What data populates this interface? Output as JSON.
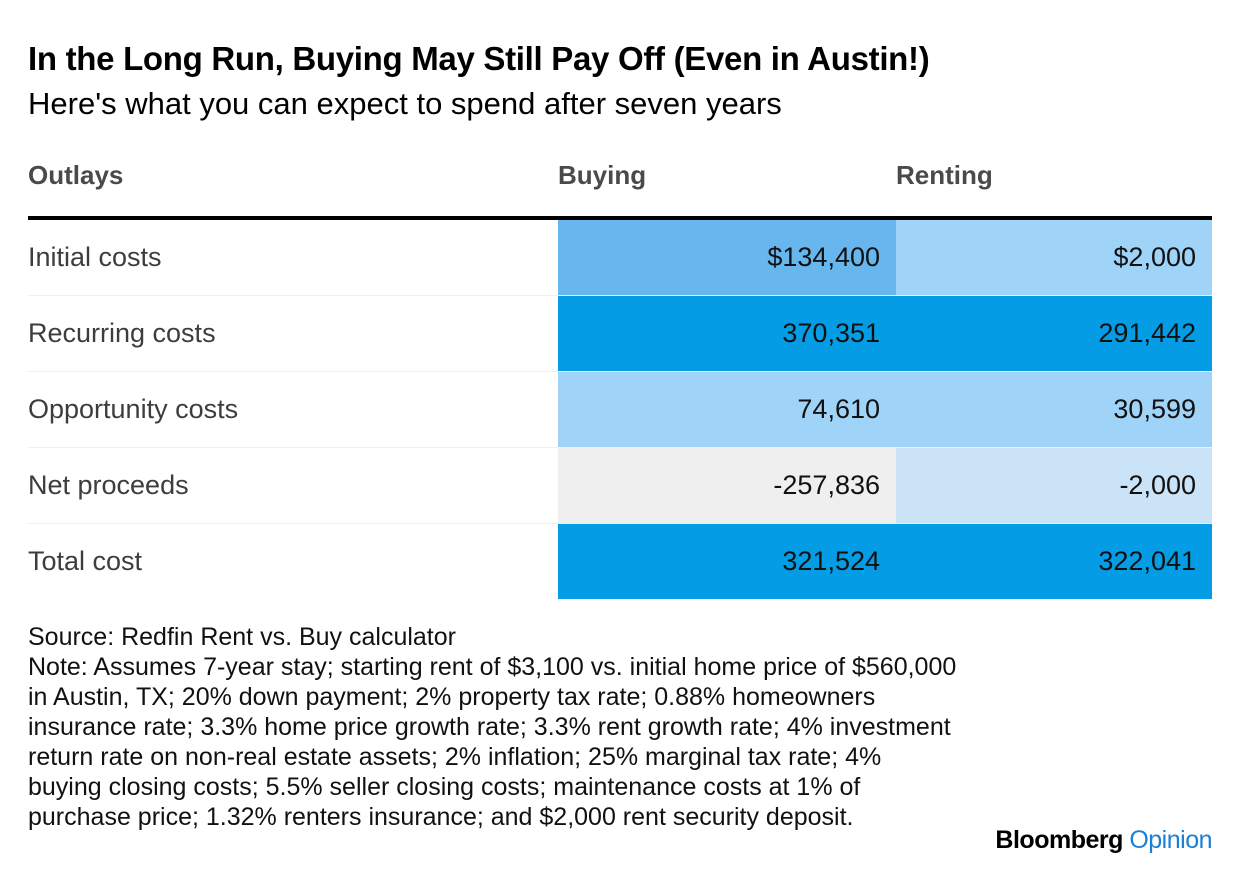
{
  "title": "In the Long Run, Buying May Still Pay Off (Even in Austin!)",
  "subtitle": "Here's what you can expect to spend after seven years",
  "chart_data": {
    "type": "table",
    "columns": [
      "Outlays",
      "Buying",
      "Renting"
    ],
    "rows": [
      {
        "label": "Initial costs",
        "buying": "$134,400",
        "renting": "$2,000",
        "buying_color": "#67b6ee",
        "renting_color": "#9fd3f8"
      },
      {
        "label": "Recurring costs",
        "buying": "370,351",
        "renting": "291,442",
        "buying_color": "#049de5",
        "renting_color": "#049de5"
      },
      {
        "label": "Opportunity costs",
        "buying": "74,610",
        "renting": "30,599",
        "buying_color": "#9fd3f8",
        "renting_color": "#9fd3f8"
      },
      {
        "label": "Net proceeds",
        "buying": "-257,836",
        "renting": "-2,000",
        "buying_color": "#efefef",
        "renting_color": "#cbe3f6"
      },
      {
        "label": "Total cost",
        "buying": "321,524",
        "renting": "322,041",
        "buying_color": "#049de5",
        "renting_color": "#049de5"
      }
    ]
  },
  "footer": {
    "source": "Source: Redfin Rent vs. Buy calculator",
    "note": "Note: Assumes 7-year stay; starting rent of $3,100 vs. initial home price of $560,000 in Austin, TX; 20% down payment; 2% property tax rate; 0.88% homeowners insurance rate; 3.3% home price growth rate; 3.3% rent growth rate; 4% investment return rate on non-real estate assets; 2% inflation; 25% marginal tax rate; 4% buying closing costs; 5.5% seller closing costs; maintenance costs at 1% of purchase price; 1.32% renters insurance; and $2,000 rent security deposit."
  },
  "brand": {
    "name": "Bloomberg",
    "section": "Opinion"
  }
}
